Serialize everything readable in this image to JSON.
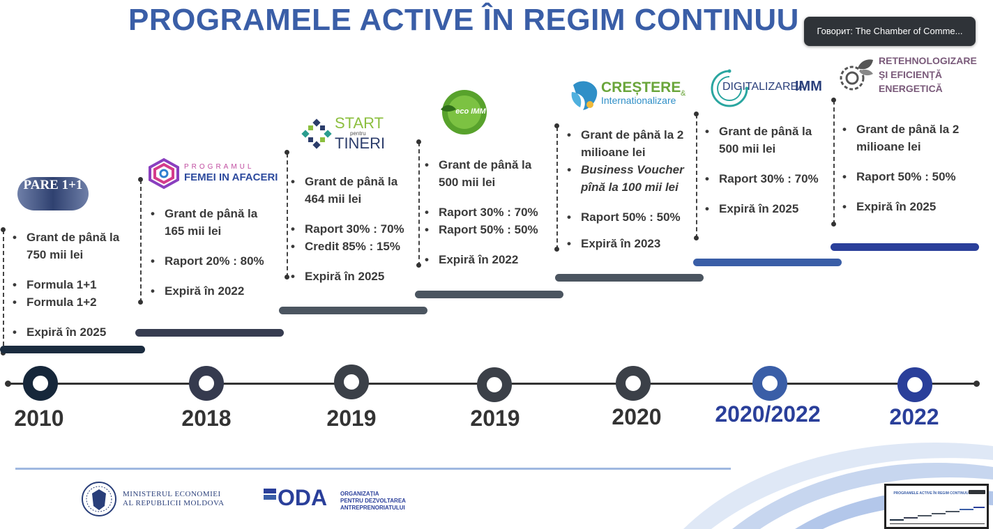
{
  "title": "PROGRAMELE ACTIVE ÎN REGIM CONTINUU",
  "speaker_label": "Говорит: The Chamber of Comme...",
  "colors": {
    "title": "#3a5ea7",
    "dark_navy": "#1b2c3f",
    "slate": "#4b5560",
    "blue": "#3a5ea7",
    "royal": "#2a3f9a"
  },
  "programs": [
    {
      "logo": "PARE 1+1",
      "year": "2010",
      "bullets": [
        {
          "text": "Grant de până la 750 mii lei",
          "gap": false
        },
        {
          "text": "Formula 1+1",
          "gap": true
        },
        {
          "text": "Formula 1+2",
          "gap": false
        },
        {
          "text": "Expiră în 2025",
          "gap": true
        }
      ]
    },
    {
      "logo": "PROGRAMUL FEMEI IN AFACERI",
      "logo_small": "PROGRAMUL",
      "logo_big": "FEMEI IN AFACERI",
      "year": "2018",
      "bullets": [
        {
          "text": "Grant de până la 165 mii lei"
        },
        {
          "text": "Raport 20% : 80%"
        },
        {
          "text": "Expiră în 2022"
        }
      ]
    },
    {
      "logo": "START pentru TINERI",
      "logo_top": "START",
      "logo_mid": "pentru",
      "logo_bot": "TINERI",
      "year": "2019",
      "bullets": [
        {
          "text": "Grant de până la 464 mii lei"
        },
        {
          "text": "Raport 30% : 70%"
        },
        {
          "text": "Credit 85% : 15%"
        },
        {
          "text": "Expiră în 2025"
        }
      ]
    },
    {
      "logo": "eco IMM",
      "year": "2019",
      "bullets": [
        {
          "text": "Grant de până la 500 mii lei"
        },
        {
          "text": "Raport 30% : 70%"
        },
        {
          "text": "Raport 50% : 50%"
        },
        {
          "text": "Expiră în 2022"
        }
      ]
    },
    {
      "logo_top": "CREȘTERE",
      "logo_amp": "&",
      "logo_bot": "Internationalizare",
      "year": "2020",
      "bullets": [
        {
          "text": "Grant de până la 2 milioane lei"
        },
        {
          "text": "Business Voucher pînă la 100 mii lei"
        },
        {
          "text": "Raport 50% : 50%"
        },
        {
          "text": "Expiră în 2023"
        }
      ]
    },
    {
      "logo_a": "DIGITALIZAREA",
      "logo_b": "IMM",
      "year": "2020/2022",
      "bullets": [
        {
          "text": "Grant de până la 500 mii lei"
        },
        {
          "text": "Raport 30% : 70%"
        },
        {
          "text": "Expiră în 2025"
        }
      ]
    },
    {
      "logo_l1": "RETEHNOLOGIZARE",
      "logo_l2": "ȘI EFICIENȚĂ",
      "logo_l3": "ENERGETICĂ",
      "year": "2022",
      "bullets": [
        {
          "text": "Grant de până la 2 milioane lei"
        },
        {
          "text": "Raport 50% : 50%"
        },
        {
          "text": "Expiră în 2025"
        }
      ]
    }
  ],
  "footer": {
    "ministry_l1": "MINISTERUL ECONOMIEI",
    "ministry_l2": "AL REPUBLICII MOLDOVA",
    "oda": "ODA",
    "oda_l1": "ORGANIZAȚIA",
    "oda_l2": "PENTRU DEZVOLTAREA",
    "oda_l3": "ANTREPRENORIATULUI"
  },
  "thumbnail_title": "PROGRAMELE ACTIVE ÎN REGIM CONTINUU"
}
